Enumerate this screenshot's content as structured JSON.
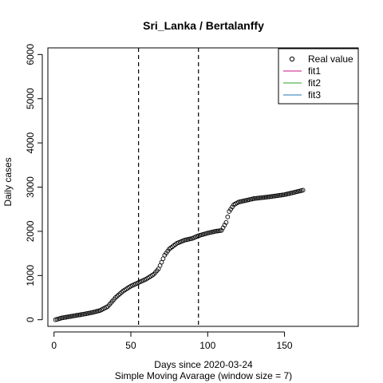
{
  "chart_data": {
    "type": "scatter",
    "title": "Sri_Lanka / Bertalanffy",
    "xlabel": "Days since 2020-03-24",
    "subtitle": "Simple Moving Avarage (window size = 7)",
    "ylabel": "Daily cases",
    "xlim": [
      -4,
      198
    ],
    "ylim": [
      -150,
      6150
    ],
    "x_ticks": [
      0,
      50,
      100,
      150
    ],
    "y_ticks": [
      0,
      1000,
      2000,
      3000,
      4000,
      5000,
      6000
    ],
    "vlines": [
      55,
      94
    ],
    "legend_position": "top-right",
    "legend": [
      {
        "label": "Real value",
        "kind": "point",
        "color": "#000000"
      },
      {
        "label": "fit1",
        "kind": "line",
        "color": "#c71585"
      },
      {
        "label": "fit2",
        "kind": "line",
        "color": "#2ca02c"
      },
      {
        "label": "fit3",
        "kind": "line",
        "color": "#1f77b4"
      }
    ],
    "series": [
      {
        "name": "Real value",
        "anchors": [
          [
            1,
            0
          ],
          [
            5,
            40
          ],
          [
            10,
            70
          ],
          [
            15,
            100
          ],
          [
            20,
            130
          ],
          [
            25,
            165
          ],
          [
            30,
            210
          ],
          [
            35,
            300
          ],
          [
            40,
            500
          ],
          [
            45,
            650
          ],
          [
            50,
            760
          ],
          [
            55,
            840
          ],
          [
            60,
            920
          ],
          [
            65,
            1030
          ],
          [
            68,
            1150
          ],
          [
            70,
            1300
          ],
          [
            72,
            1460
          ],
          [
            75,
            1600
          ],
          [
            80,
            1730
          ],
          [
            85,
            1800
          ],
          [
            90,
            1840
          ],
          [
            94,
            1900
          ],
          [
            100,
            1960
          ],
          [
            105,
            2000
          ],
          [
            109,
            2020
          ],
          [
            112,
            2200
          ],
          [
            114,
            2450
          ],
          [
            117,
            2600
          ],
          [
            120,
            2660
          ],
          [
            125,
            2700
          ],
          [
            130,
            2740
          ],
          [
            140,
            2780
          ],
          [
            150,
            2830
          ],
          [
            155,
            2870
          ],
          [
            162,
            2930
          ]
        ]
      }
    ]
  }
}
